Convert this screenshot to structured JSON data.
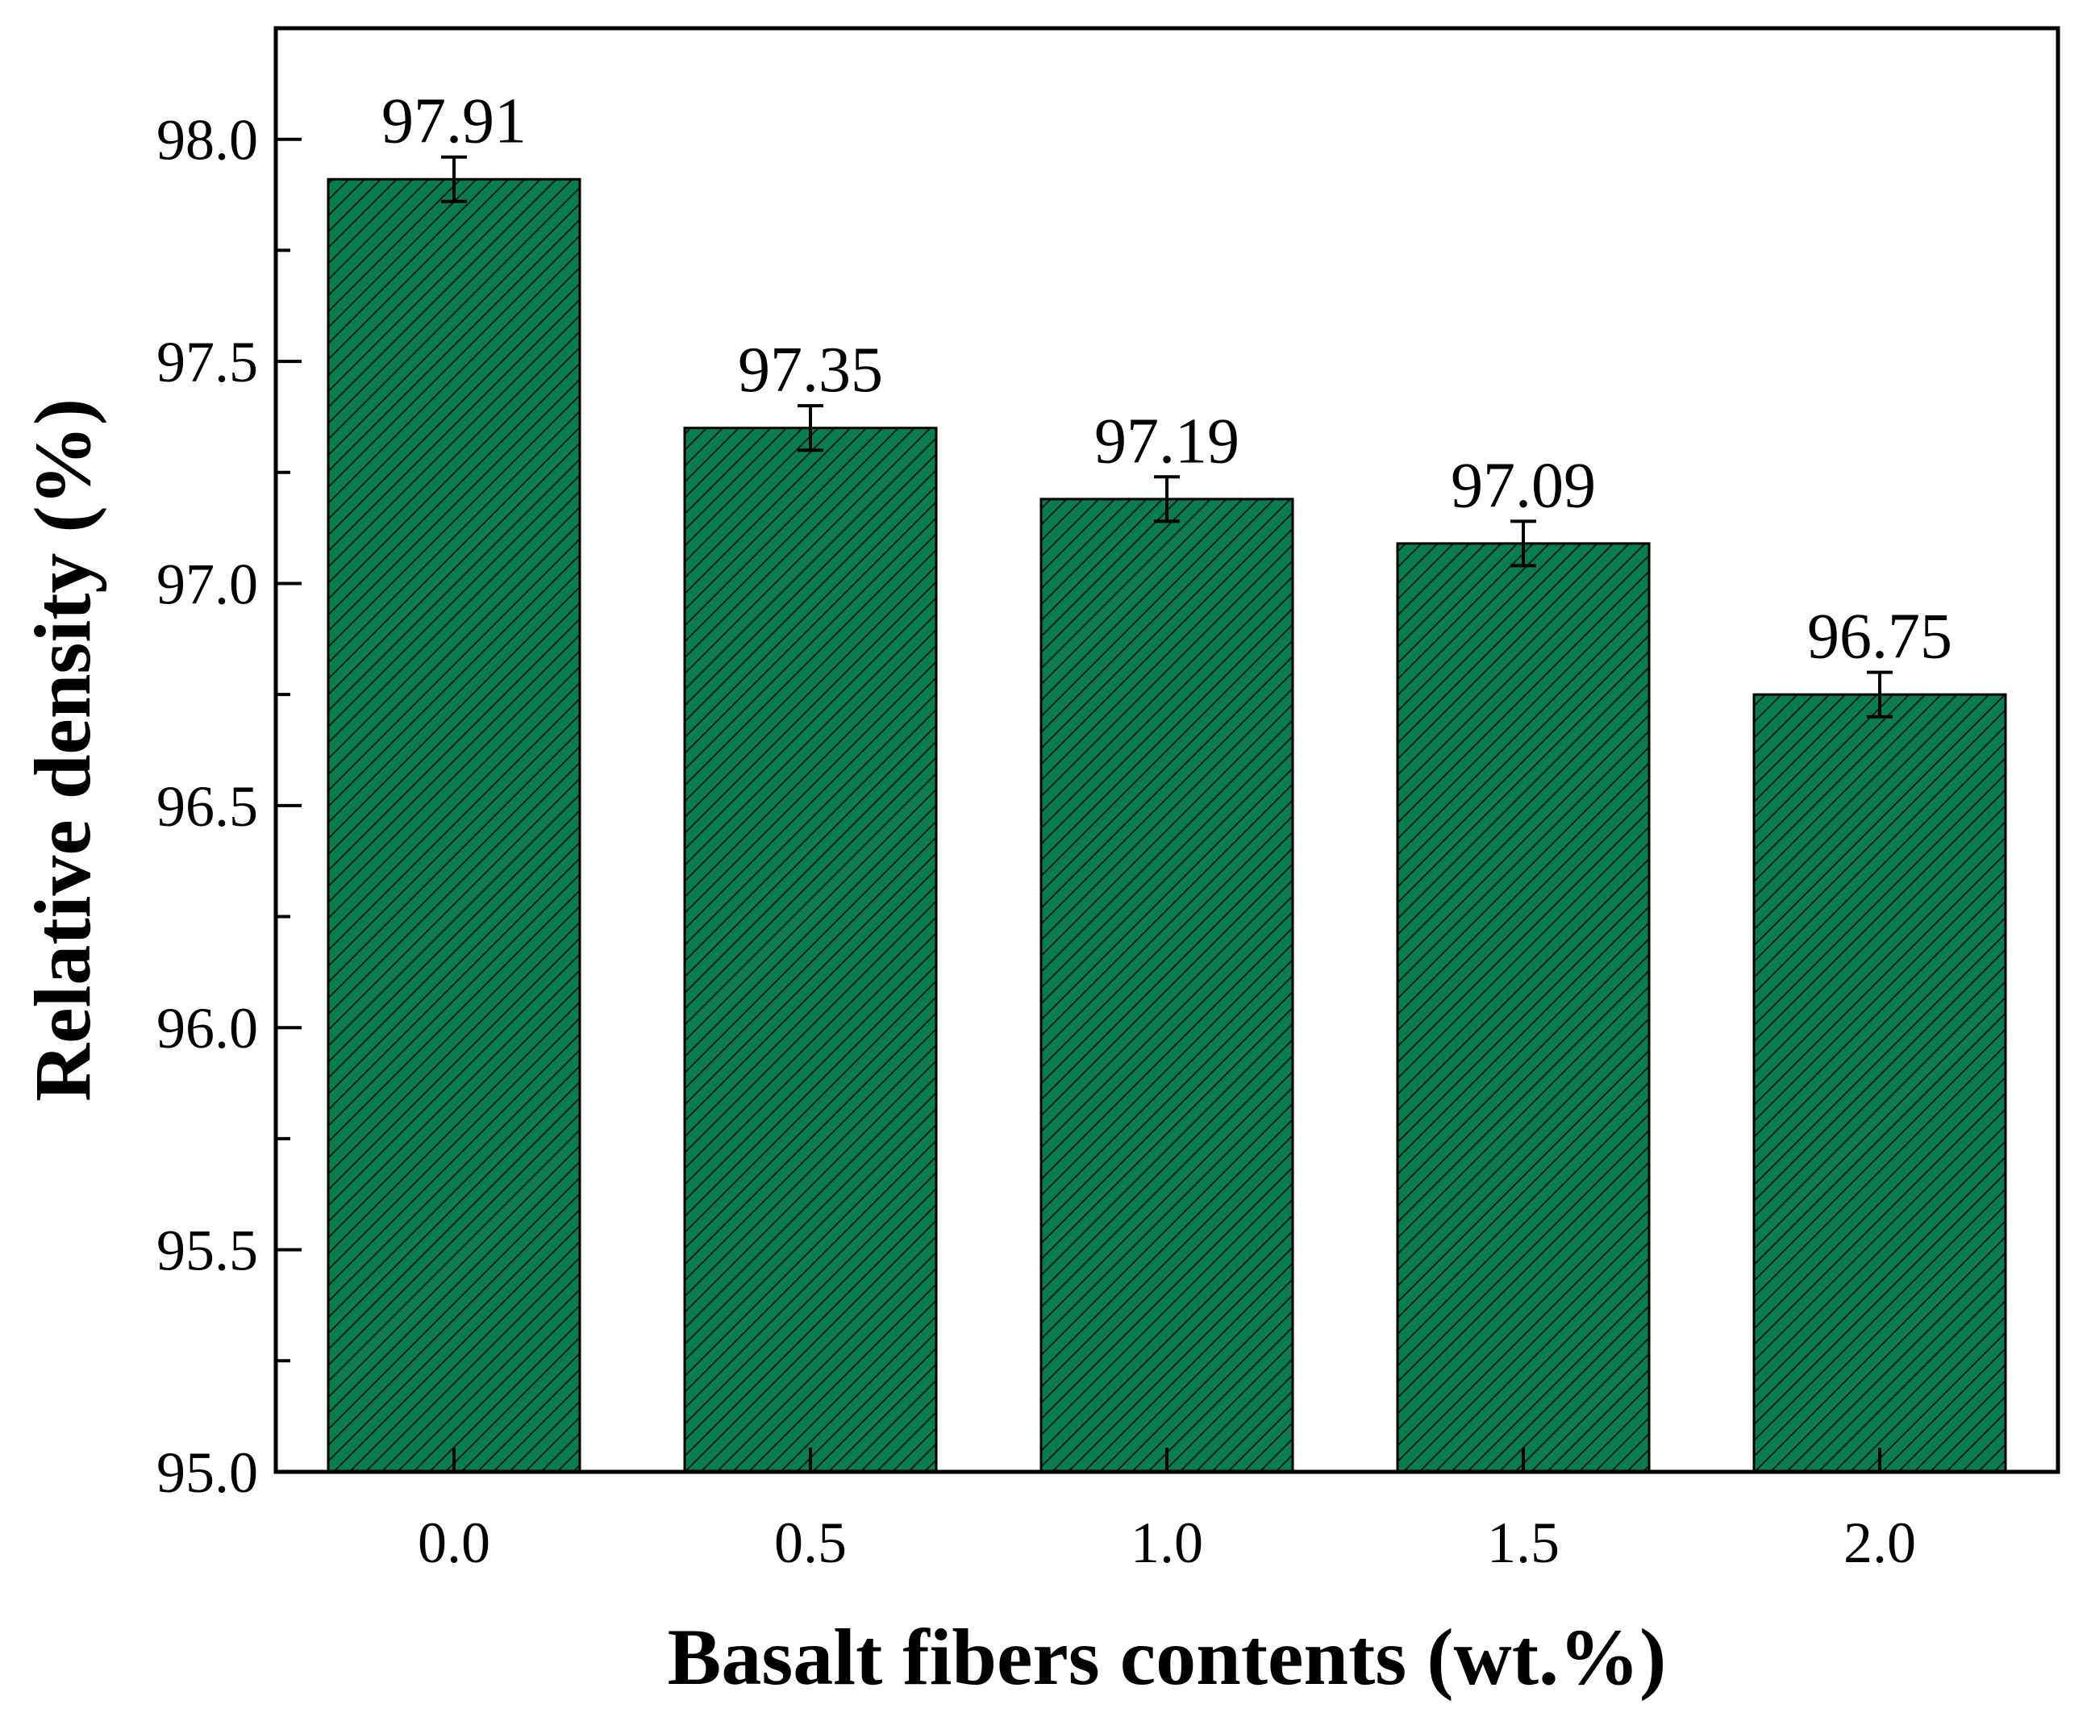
{
  "chart_data": {
    "type": "bar",
    "title": "",
    "xlabel": "Basalt fibers contents (wt.%)",
    "ylabel": "Relative density (%)",
    "categories": [
      "0.0",
      "0.5",
      "1.0",
      "1.5",
      "2.0"
    ],
    "values": [
      97.91,
      97.35,
      97.19,
      97.09,
      96.75
    ],
    "value_labels": [
      "97.91",
      "97.35",
      "97.19",
      "97.09",
      "96.75"
    ],
    "errors": [
      0.05,
      0.05,
      0.05,
      0.05,
      0.05
    ],
    "ylim": [
      95.0,
      98.25
    ],
    "yticks": [
      95.0,
      95.5,
      96.0,
      96.5,
      97.0,
      97.5,
      98.0
    ],
    "ytick_labels": [
      "95.0",
      "95.5",
      "96.0",
      "96.5",
      "97.0",
      "97.5",
      "98.0"
    ],
    "grid": false,
    "legend": "none",
    "colors": {
      "bar_fill": "#0a7d50",
      "hatch": "#0b1f12",
      "edge": "#000000"
    }
  }
}
